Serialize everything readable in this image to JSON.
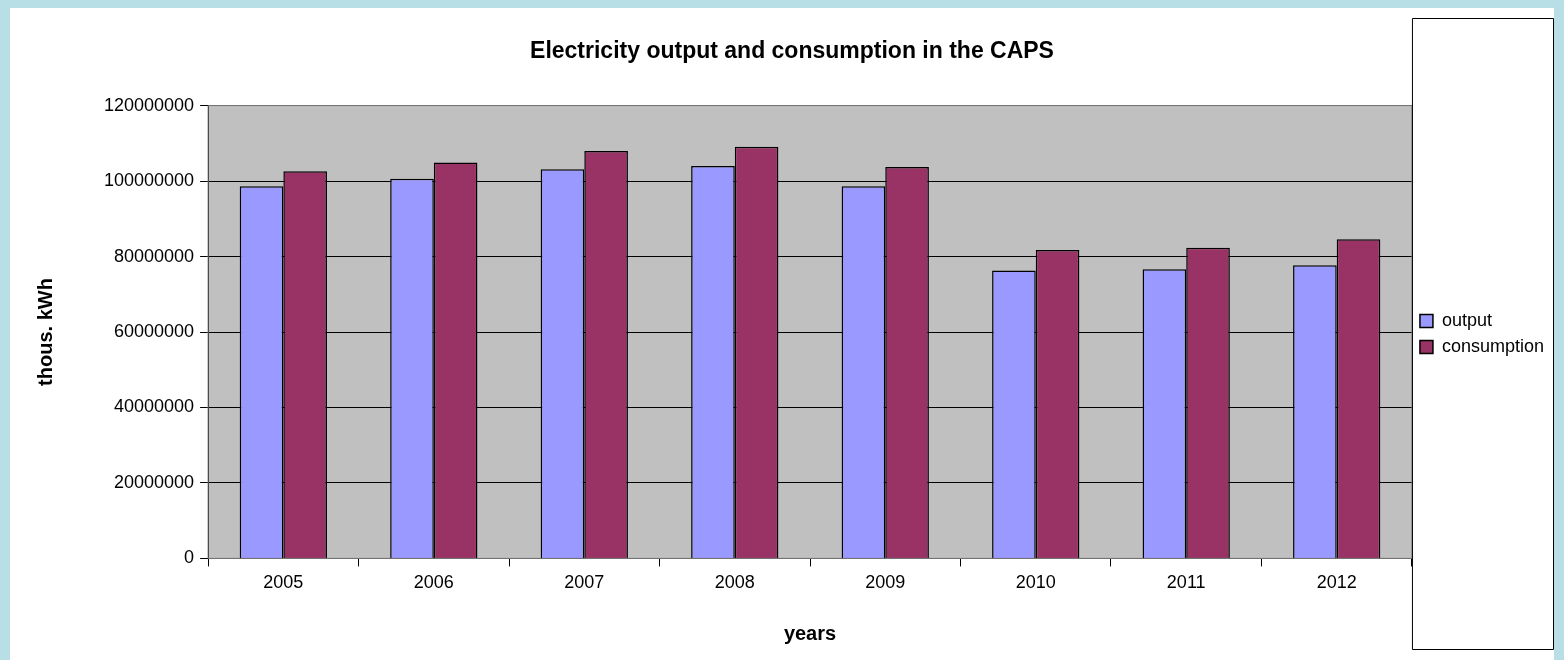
{
  "chart_data": {
    "type": "bar",
    "title": "Electricity output and consumption in the CAPS",
    "xlabel": "years",
    "ylabel": "thous. kWh",
    "categories": [
      "2005",
      "2006",
      "2007",
      "2008",
      "2009",
      "2010",
      "2011",
      "2012"
    ],
    "series": [
      {
        "name": "output",
        "color": "#9999ff",
        "values": [
          98600000,
          100600000,
          103100000,
          104000000,
          98600000,
          76300000,
          76600000,
          77700000
        ]
      },
      {
        "name": "consumption",
        "color": "#993366",
        "values": [
          102600000,
          104900000,
          108000000,
          109100000,
          103700000,
          81700000,
          82300000,
          84600000
        ]
      }
    ],
    "ylim": [
      0,
      120000000
    ],
    "yticks": [
      0,
      20000000,
      40000000,
      60000000,
      80000000,
      100000000,
      120000000
    ],
    "grid": "y",
    "legend": "right"
  }
}
